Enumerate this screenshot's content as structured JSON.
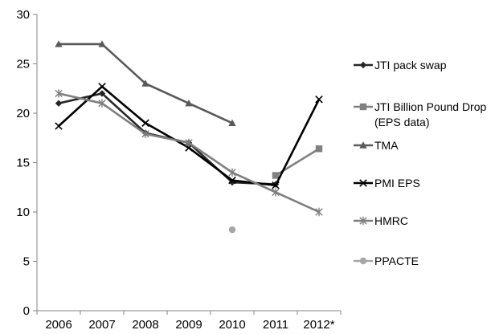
{
  "chart_data": {
    "type": "line",
    "title": "",
    "xlabel": "",
    "ylabel": "",
    "categories": [
      "2006",
      "2007",
      "2008",
      "2009",
      "2010",
      "2011",
      "2012*"
    ],
    "ylim": [
      0,
      30
    ],
    "yticks": [
      "0",
      "5",
      "10",
      "15",
      "20",
      "25",
      "30"
    ],
    "grid": false,
    "legend_position": "right",
    "series": [
      {
        "name": "JTI pack swap",
        "color": "#262626",
        "marker": "diamond",
        "values": [
          21,
          22,
          18,
          17,
          13,
          12.8,
          null
        ]
      },
      {
        "name": "JTI Billion Pound Drop (EPS data)",
        "color": "#808080",
        "marker": "square",
        "values": [
          null,
          null,
          null,
          null,
          null,
          13.7,
          16.4
        ]
      },
      {
        "name": "TMA",
        "color": "#595959",
        "marker": "triangle",
        "values": [
          27,
          27,
          23,
          21,
          19,
          null,
          null
        ]
      },
      {
        "name": "PMI EPS",
        "color": "#000000",
        "marker": "x",
        "values": [
          18.7,
          22.7,
          19,
          16.5,
          13.2,
          12.7,
          21.4
        ]
      },
      {
        "name": "HMRC",
        "color": "#7f7f7f",
        "marker": "star",
        "values": [
          22,
          21,
          17.9,
          17,
          14,
          12,
          10
        ]
      },
      {
        "name": "PPACTE",
        "color": "#a6a6a6",
        "marker": "circle",
        "values": [
          null,
          null,
          null,
          null,
          8.2,
          null,
          null
        ]
      }
    ]
  }
}
